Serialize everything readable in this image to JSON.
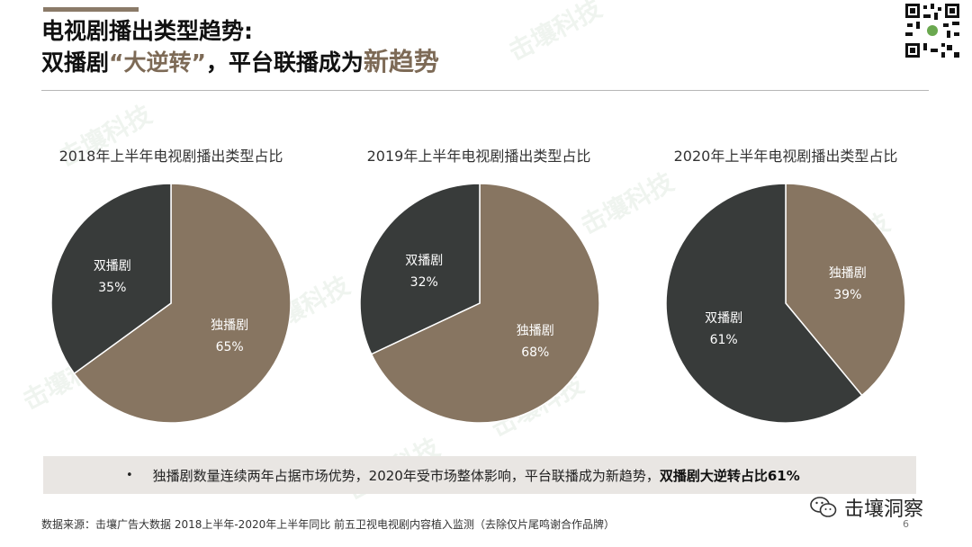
{
  "title": {
    "line1": "电视剧播出类型趋势:",
    "line2_a": "双播剧",
    "line2_quote": "“大逆转”",
    "line2_b": "，平台联播成为",
    "line2_hl": "新趋势"
  },
  "colors": {
    "dark": "#383b3a",
    "tan": "#877561",
    "accent": "#7d6a56"
  },
  "chart_data": [
    {
      "type": "pie",
      "title": "2018年上半年电视剧播出类型占比",
      "labels": [
        "双播剧",
        "独播剧"
      ],
      "values": [
        35,
        65
      ],
      "value_labels": [
        "35%",
        "65%"
      ]
    },
    {
      "type": "pie",
      "title": "2019年上半年电视剧播出类型占比",
      "labels": [
        "双播剧",
        "独播剧"
      ],
      "values": [
        32,
        68
      ],
      "value_labels": [
        "32%",
        "68%"
      ]
    },
    {
      "type": "pie",
      "title": "2020年上半年电视剧播出类型占比",
      "labels": [
        "独播剧",
        "双播剧"
      ],
      "values": [
        39,
        61
      ],
      "value_labels": [
        "39%",
        "61%"
      ]
    }
  ],
  "summary": {
    "bullet": "•",
    "text": "独播剧数量连续两年占据市场优势，2020年受市场整体影响，平台联播成为新趋势，",
    "strong": "双播剧大逆转占比61%"
  },
  "source": "数据来源：击壤广告大数据  2018上半年-2020年上半年同比 前五卫视电视剧内容植入监测（去除仅片尾鸣谢合作品牌）",
  "page_number": "6",
  "wechat_name": "击壤洞察",
  "watermark_text": "击壤科技"
}
